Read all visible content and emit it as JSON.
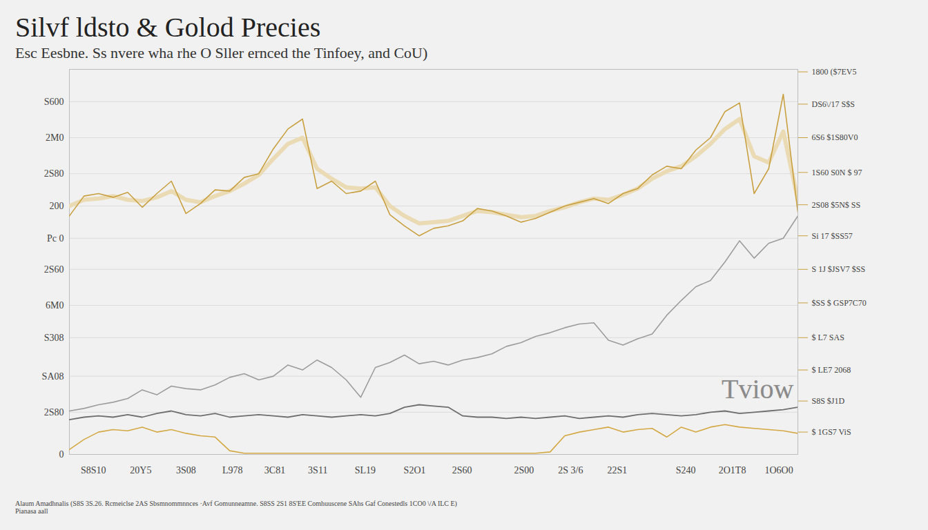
{
  "chart_data": {
    "type": "line",
    "title": "Silvf ldsto & Golod Precies",
    "subtitle": "Esc Eesbne. Ss nvere wha rhe O Sller ernced the Tinfoey, and CoU)",
    "caption": [
      "Alaum Amadhnalis (S8S 3S.26. Rcmeiclse 2AS Sbsmnommnnces ·Avf Gomunneamne. S8SS 2S1 8S'EE Comhuuscene SAhs Gaf Conestedls 1CO0 \\/A ILC E)",
      "Pianasa aall"
    ],
    "annotations": [
      "Tviow"
    ],
    "x": [
      0,
      2,
      4,
      6,
      8,
      10,
      12,
      14,
      16,
      18,
      20,
      22,
      24,
      26,
      28,
      30,
      32,
      34,
      36,
      38,
      40,
      42,
      44,
      46,
      48,
      50,
      52,
      54,
      56,
      58,
      60,
      62,
      64,
      66,
      68,
      70,
      72,
      74,
      76,
      78,
      80,
      82,
      84,
      86,
      88,
      90,
      92,
      94,
      96,
      98,
      100
    ],
    "xlim": [
      0,
      100
    ],
    "xticks": [
      {
        "value": 3.3,
        "label": "S8S10"
      },
      {
        "value": 9.8,
        "label": "20Y5"
      },
      {
        "value": 16,
        "label": "3S08"
      },
      {
        "value": 22.4,
        "label": "L978"
      },
      {
        "value": 28.2,
        "label": "3C81"
      },
      {
        "value": 34.1,
        "label": "3S11"
      },
      {
        "value": 40.6,
        "label": "SL19"
      },
      {
        "value": 47.4,
        "label": "S2O1"
      },
      {
        "value": 53.9,
        "label": "2S60"
      },
      {
        "value": 62.4,
        "label": "2S00"
      },
      {
        "value": 68.8,
        "label": "2S 3/6"
      },
      {
        "value": 75.2,
        "label": "22S1"
      },
      {
        "value": 84.6,
        "label": "S240"
      },
      {
        "value": 91,
        "label": "2O1T8"
      },
      {
        "value": 97.4,
        "label": "1O6O0"
      }
    ],
    "ylim": [
      0,
      310
    ],
    "yticks": [
      0,
      {
        "value": 34,
        "label": "2S80"
      },
      {
        "value": 63,
        "label": "SA08"
      },
      {
        "value": 94,
        "label": "S308"
      },
      {
        "value": 120,
        "label": "6M0"
      },
      {
        "value": 149,
        "label": "2S60"
      },
      {
        "value": 174,
        "label": "Pc 0"
      },
      200,
      {
        "value": 226,
        "label": "2S80"
      },
      {
        "value": 255,
        "label": "2M0"
      },
      {
        "value": 284,
        "label": "S600"
      }
    ],
    "y2lim": [
      0,
      310
    ],
    "y2ticks": [
      {
        "value": 18,
        "label": "$ 1GS7 ViS"
      },
      {
        "value": 43,
        "label": "S8S $J1D"
      },
      {
        "value": 68,
        "label": "$ LE7 2068"
      },
      {
        "value": 94,
        "label": "$ L7 SAS"
      },
      {
        "value": 122,
        "label": "$SS $ GSP7C70"
      },
      {
        "value": 149,
        "label": "S 1J $JSV7 $SS"
      },
      {
        "value": 176,
        "label": "Si 17 $SS57"
      },
      {
        "value": 201,
        "label": "2S08 $5N$ SS"
      },
      {
        "value": 227,
        "label": "1S60 S0N $ 97"
      },
      {
        "value": 255,
        "label": "6S6 $1S80V0"
      },
      {
        "value": 282,
        "label": "DS6\\/17 S$S"
      },
      {
        "value": 308,
        "label": "1800 ($7EV5"
      }
    ],
    "grid": true,
    "series": [
      {
        "color": "#eadbb4",
        "values": [
          200,
          205,
          206,
          208,
          205,
          204,
          207,
          212,
          205,
          203,
          208,
          212,
          218,
          225,
          238,
          250,
          255,
          230,
          222,
          215,
          214,
          215,
          200,
          192,
          186,
          187,
          188,
          192,
          196,
          195,
          193,
          191,
          192,
          196,
          199,
          203,
          206,
          205,
          209,
          214,
          222,
          228,
          232,
          240,
          250,
          262,
          270,
          240,
          235,
          260,
          205
        ]
      },
      {
        "color": "#c9a040",
        "values": [
          192,
          208,
          210,
          207,
          211,
          199,
          210,
          220,
          194,
          202,
          213,
          212,
          223,
          226,
          246,
          262,
          270,
          214,
          220,
          210,
          212,
          220,
          193,
          184,
          176,
          182,
          184,
          188,
          198,
          196,
          192,
          187,
          190,
          195,
          200,
          203,
          206,
          202,
          210,
          214,
          225,
          232,
          230,
          245,
          255,
          276,
          283,
          210,
          230,
          290,
          195
        ]
      },
      {
        "color": "#9c9c9c",
        "values": [
          35,
          37,
          40,
          42,
          45,
          52,
          48,
          55,
          53,
          52,
          56,
          62,
          65,
          60,
          63,
          72,
          68,
          76,
          70,
          60,
          46,
          70,
          74,
          80,
          73,
          75,
          72,
          76,
          78,
          81,
          87,
          90,
          95,
          98,
          102,
          105,
          106,
          92,
          88,
          93,
          97,
          112,
          124,
          135,
          140,
          155,
          172,
          158,
          170,
          174,
          192
        ]
      },
      {
        "color": "#6e6e6e",
        "values": [
          28,
          30,
          31,
          30,
          32,
          30,
          33,
          35,
          32,
          31,
          33,
          30,
          31,
          32,
          31,
          30,
          32,
          31,
          30,
          31,
          32,
          31,
          33,
          38,
          40,
          39,
          38,
          31,
          30,
          30,
          29,
          30,
          29,
          30,
          31,
          29,
          30,
          31,
          30,
          32,
          33,
          32,
          31,
          32,
          34,
          35,
          33,
          34,
          35,
          36,
          38
        ]
      },
      {
        "color": "#d4a843",
        "values": [
          4,
          12,
          18,
          20,
          19,
          22,
          18,
          20,
          17,
          15,
          14,
          3,
          1,
          1,
          1,
          1,
          1,
          1,
          1,
          1,
          1,
          1,
          1,
          1,
          1,
          1,
          1,
          1,
          1,
          1,
          1,
          1,
          1,
          2,
          15,
          18,
          20,
          22,
          18,
          20,
          21,
          14,
          22,
          18,
          22,
          24,
          22,
          21,
          20,
          19,
          17
        ]
      }
    ]
  }
}
